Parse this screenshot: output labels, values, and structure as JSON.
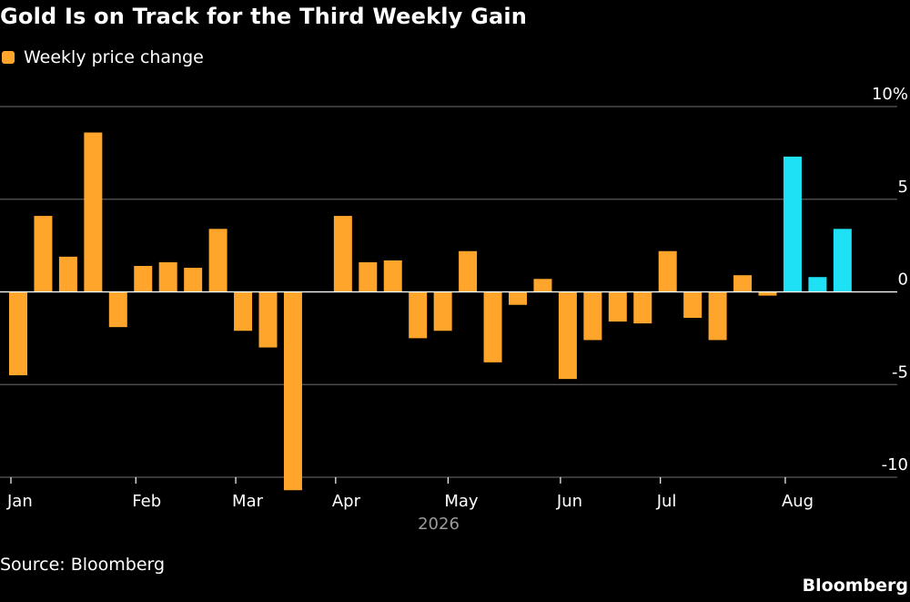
{
  "title": "Gold Is on Track for the Third Weekly Gain",
  "legend": {
    "label": "Weekly price change",
    "color": "#ffa52b"
  },
  "source": "Source: Bloomberg",
  "brand": "Bloomberg",
  "chart_data": {
    "type": "bar",
    "title": "Gold Is on Track for the Third Weekly Gain",
    "xlabel": "2026",
    "ylabel": "",
    "ylim": [
      -10,
      10
    ],
    "yticks": [
      {
        "value": 10,
        "label": "10%"
      },
      {
        "value": 5,
        "label": "5"
      },
      {
        "value": 0,
        "label": "0"
      },
      {
        "value": -5,
        "label": "-5"
      },
      {
        "value": -10,
        "label": "-10"
      }
    ],
    "month_labels": [
      {
        "label": "Jan",
        "week_index": 0
      },
      {
        "label": "Feb",
        "week_index": 5
      },
      {
        "label": "Mar",
        "week_index": 9
      },
      {
        "label": "Apr",
        "week_index": 13
      },
      {
        "label": "May",
        "week_index": 17.5
      },
      {
        "label": "Jun",
        "week_index": 22
      },
      {
        "label": "Jul",
        "week_index": 26
      },
      {
        "label": "Aug",
        "week_index": 31
      }
    ],
    "series": [
      {
        "name": "Weekly price change",
        "values": [
          -4.5,
          4.1,
          1.9,
          8.6,
          -1.9,
          1.4,
          1.6,
          1.3,
          3.4,
          -2.1,
          -3.0,
          -10.7,
          0,
          4.1,
          1.6,
          1.7,
          -2.5,
          -2.1,
          2.2,
          -3.8,
          -0.7,
          0.7,
          -4.7,
          -2.6,
          -1.6,
          -1.7,
          2.2,
          -1.4,
          -2.6,
          0.9,
          -0.2,
          7.3,
          0.8,
          3.4
        ],
        "colors": [
          "#ffa52b",
          "#ffa52b",
          "#ffa52b",
          "#ffa52b",
          "#ffa52b",
          "#ffa52b",
          "#ffa52b",
          "#ffa52b",
          "#ffa52b",
          "#ffa52b",
          "#ffa52b",
          "#ffa52b",
          "#ffa52b",
          "#ffa52b",
          "#ffa52b",
          "#ffa52b",
          "#ffa52b",
          "#ffa52b",
          "#ffa52b",
          "#ffa52b",
          "#ffa52b",
          "#ffa52b",
          "#ffa52b",
          "#ffa52b",
          "#ffa52b",
          "#ffa52b",
          "#ffa52b",
          "#ffa52b",
          "#ffa52b",
          "#ffa52b",
          "#ffa52b",
          "#1ee1f5",
          "#1ee1f5",
          "#1ee1f5"
        ]
      }
    ],
    "grid": true
  }
}
